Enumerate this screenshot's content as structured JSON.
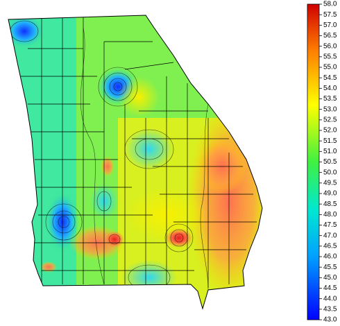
{
  "colorbar": {
    "range": [
      43,
      58
    ],
    "ticks": [
      {
        "value": 43,
        "label": "43.0"
      },
      {
        "value": 43.5,
        "label": "43.5"
      },
      {
        "value": 44,
        "label": "44.0"
      },
      {
        "value": 44.5,
        "label": "44.5"
      },
      {
        "value": 45,
        "label": "45.0"
      },
      {
        "value": 45.5,
        "label": "45.5"
      },
      {
        "value": 46,
        "label": "46.0"
      },
      {
        "value": 46.5,
        "label": "46.5"
      },
      {
        "value": 47,
        "label": "47.0"
      },
      {
        "value": 47.5,
        "label": "47.5"
      },
      {
        "value": 48,
        "label": "48.0"
      },
      {
        "value": 48.5,
        "label": "48.5"
      },
      {
        "value": 49,
        "label": "49.0"
      },
      {
        "value": 49.5,
        "label": "49.5"
      },
      {
        "value": 50,
        "label": "50.0"
      },
      {
        "value": 50.5,
        "label": "50.5"
      },
      {
        "value": 51,
        "label": "51.0"
      },
      {
        "value": 51.5,
        "label": "51.5"
      },
      {
        "value": 52,
        "label": "52.0"
      },
      {
        "value": 52.5,
        "label": "52.5"
      },
      {
        "value": 53,
        "label": "53.0"
      },
      {
        "value": 53.5,
        "label": "53.5"
      },
      {
        "value": 54,
        "label": "54.0"
      },
      {
        "value": 54.5,
        "label": "54.5"
      },
      {
        "value": 55,
        "label": "55.0"
      },
      {
        "value": 55.5,
        "label": "55.5"
      },
      {
        "value": 56,
        "label": "56.0"
      },
      {
        "value": 56.5,
        "label": "56.5"
      },
      {
        "value": 57,
        "label": "57.0"
      },
      {
        "value": 57.5,
        "label": "57.5"
      },
      {
        "value": 58,
        "label": "58.0"
      }
    ]
  }
}
